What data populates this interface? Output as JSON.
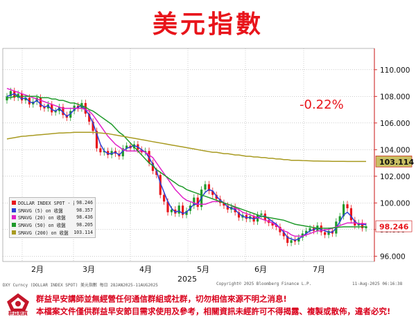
{
  "title": "美元指數",
  "change_label": "-0.22%",
  "legend": [
    {
      "name": "DOLLAR INDEX SPOT - 最新價",
      "value": "98.246",
      "color": "#e8141b"
    },
    {
      "name": "SMAVG (5)  on 收盤",
      "value": "98.357",
      "color": "#2d3fd6"
    },
    {
      "name": "SMAVG (20) on 收盤",
      "value": "98.436",
      "color": "#e020c8"
    },
    {
      "name": "SMAVG (50) on 收盤",
      "value": "98.205",
      "color": "#1f9a2a"
    },
    {
      "name": "SMAVG (200) on 收盤",
      "value": "103.114",
      "color": "#a89a20"
    }
  ],
  "footer": {
    "left": "DXY Curncy (DOLLAR INDEX SPOT) 美元指數  每日 28JAN2025-11AUG2025",
    "center": "Copyright© 2025 Bloomberg Finance L.P.",
    "right": "11-Aug-2025 06:16:38"
  },
  "disclaimer": {
    "logo_text": "群益期貨",
    "line1": "群益早安講師並無經營任何通信群組或社群，切勿相信來源不明之消息!",
    "line2": "本檔案文件僅供群益早安節目需求使用及參考，相關資訊未經許可不得揭露、複製或散佈，違者必究!"
  },
  "chart_data": {
    "type": "candlestick",
    "title": "美元指數",
    "xlabel": "2025",
    "x_ticks": [
      "2月",
      "3月",
      "4月",
      "5月",
      "6月",
      "7月"
    ],
    "y_ticks": [
      96.0,
      98.0,
      100.0,
      102.0,
      104.0,
      106.0,
      108.0,
      110.0
    ],
    "ylim": [
      95.6,
      111.6
    ],
    "last_price_label": "98.246",
    "sma200_label": "103.114",
    "grid": true,
    "legend_position": "bottom-left",
    "series": [
      {
        "name": "SMAVG (5) on 收盤",
        "color": "#2d3fd6",
        "values": [
          108.0,
          108.1,
          108.2,
          108.0,
          107.8,
          107.9,
          107.6,
          107.5,
          107.7,
          107.4,
          107.2,
          107.3,
          107.0,
          106.9,
          107.1,
          106.8,
          106.5,
          106.7,
          107.0,
          107.2,
          107.3,
          107.0,
          106.6,
          106.0,
          105.2,
          104.4,
          103.9,
          103.7,
          103.7,
          103.8,
          103.6,
          103.9,
          104.1,
          104.2,
          104.3,
          104.2,
          104.0,
          103.8,
          103.4,
          102.9,
          102.4,
          101.5,
          100.8,
          100.1,
          99.6,
          99.3,
          99.4,
          99.2,
          99.3,
          99.6,
          99.9,
          99.9,
          100.4,
          100.8,
          101.0,
          100.9,
          100.5,
          100.2,
          100.0,
          99.7,
          99.6,
          99.5,
          99.2,
          99.0,
          98.9,
          98.9,
          98.8,
          98.9,
          99.0,
          99.0,
          98.8,
          98.6,
          98.4,
          98.1,
          97.8,
          97.4,
          97.3,
          97.2,
          97.3,
          97.5,
          97.7,
          97.9,
          98.0,
          98.1,
          98.0,
          97.9,
          97.8,
          97.8,
          98.1,
          98.6,
          99.1,
          99.3,
          99.0,
          98.6,
          98.4,
          98.4,
          98.36
        ]
      },
      {
        "name": "SMAVG (20) on 收盤",
        "color": "#e020c8",
        "values": [
          108.6,
          108.5,
          108.4,
          108.3,
          108.2,
          108.1,
          108.0,
          107.9,
          107.8,
          107.7,
          107.6,
          107.5,
          107.4,
          107.3,
          107.2,
          107.1,
          107.1,
          107.1,
          107.1,
          107.1,
          107.1,
          107.0,
          106.9,
          106.6,
          106.2,
          105.8,
          105.4,
          105.0,
          104.7,
          104.4,
          104.2,
          104.0,
          103.9,
          103.9,
          103.9,
          103.9,
          103.9,
          103.8,
          103.6,
          103.4,
          103.0,
          102.6,
          102.2,
          101.8,
          101.4,
          101.0,
          100.7,
          100.4,
          100.2,
          100.1,
          100.0,
          99.9,
          99.9,
          99.9,
          100.0,
          100.1,
          100.1,
          100.1,
          100.0,
          99.9,
          99.8,
          99.6,
          99.5,
          99.3,
          99.2,
          99.1,
          99.0,
          98.9,
          98.8,
          98.7,
          98.6,
          98.5,
          98.3,
          98.1,
          97.9,
          97.8,
          97.6,
          97.5,
          97.5,
          97.5,
          97.6,
          97.7,
          97.8,
          97.9,
          97.9,
          98.0,
          98.0,
          98.1,
          98.2,
          98.3,
          98.4,
          98.5,
          98.5,
          98.5,
          98.45,
          98.44,
          98.44
        ]
      },
      {
        "name": "SMAVG (50) on 收盤",
        "color": "#1f9a2a",
        "values": [
          107.9,
          107.9,
          108.0,
          108.0,
          108.0,
          108.0,
          108.0,
          108.0,
          108.0,
          107.9,
          107.9,
          107.9,
          107.8,
          107.8,
          107.7,
          107.7,
          107.6,
          107.5,
          107.5,
          107.4,
          107.3,
          107.2,
          107.0,
          106.9,
          106.7,
          106.5,
          106.3,
          106.1,
          105.9,
          105.6,
          105.3,
          105.1,
          104.8,
          104.5,
          104.2,
          103.9,
          103.6,
          103.3,
          103.0,
          102.8,
          102.5,
          102.3,
          102.1,
          101.9,
          101.7,
          101.5,
          101.3,
          101.2,
          101.0,
          100.9,
          100.8,
          100.7,
          100.6,
          100.5,
          100.4,
          100.3,
          100.2,
          100.1,
          100.0,
          99.9,
          99.8,
          99.7,
          99.6,
          99.5,
          99.4,
          99.3,
          99.2,
          99.1,
          99.0,
          98.95,
          98.9,
          98.85,
          98.8,
          98.75,
          98.7,
          98.6,
          98.5,
          98.4,
          98.35,
          98.3,
          98.25,
          98.2,
          98.15,
          98.1,
          98.1,
          98.1,
          98.1,
          98.12,
          98.15,
          98.18,
          98.2,
          98.2,
          98.2,
          98.2,
          98.2,
          98.2,
          98.2
        ]
      },
      {
        "name": "SMAVG (200) on 收盤",
        "color": "#a89a20",
        "values": [
          104.8,
          104.85,
          104.9,
          104.95,
          105.0,
          105.02,
          105.05,
          105.07,
          105.1,
          105.12,
          105.15,
          105.17,
          105.2,
          105.22,
          105.25,
          105.25,
          105.27,
          105.28,
          105.3,
          105.3,
          105.3,
          105.3,
          105.3,
          105.3,
          105.28,
          105.25,
          105.22,
          105.2,
          105.15,
          105.1,
          105.05,
          105.0,
          104.95,
          104.9,
          104.85,
          104.8,
          104.75,
          104.7,
          104.65,
          104.6,
          104.55,
          104.5,
          104.45,
          104.4,
          104.35,
          104.3,
          104.25,
          104.2,
          104.15,
          104.1,
          104.05,
          104.0,
          103.95,
          103.9,
          103.85,
          103.8,
          103.8,
          103.75,
          103.7,
          103.7,
          103.65,
          103.6,
          103.6,
          103.55,
          103.5,
          103.5,
          103.45,
          103.45,
          103.4,
          103.4,
          103.35,
          103.35,
          103.3,
          103.3,
          103.25,
          103.25,
          103.2,
          103.2,
          103.2,
          103.18,
          103.17,
          103.16,
          103.15,
          103.15,
          103.14,
          103.13,
          103.13,
          103.12,
          103.12,
          103.12,
          103.12,
          103.11,
          103.11,
          103.11,
          103.11,
          103.11,
          103.114
        ]
      }
    ],
    "close": [
      108.0,
      108.4,
      107.9,
      108.2,
      107.7,
      107.9,
      107.4,
      107.6,
      107.9,
      107.2,
      107.1,
      107.4,
      106.8,
      106.9,
      107.2,
      106.6,
      106.4,
      106.9,
      107.3,
      107.1,
      107.5,
      106.7,
      106.1,
      105.4,
      104.1,
      103.8,
      103.9,
      103.6,
      103.9,
      103.7,
      103.5,
      104.1,
      104.3,
      104.1,
      104.4,
      104.0,
      103.8,
      103.9,
      103.0,
      102.4,
      102.1,
      100.6,
      100.1,
      99.3,
      99.5,
      99.2,
      99.8,
      99.1,
      99.4,
      99.8,
      100.4,
      99.7,
      101.0,
      101.4,
      100.9,
      100.6,
      100.3,
      100.0,
      99.8,
      99.5,
      99.7,
      99.3,
      98.9,
      99.1,
      98.8,
      99.0,
      98.6,
      99.1,
      99.2,
      98.7,
      98.5,
      98.3,
      98.2,
      97.8,
      97.5,
      97.0,
      97.2,
      97.1,
      97.4,
      97.7,
      97.9,
      98.1,
      97.9,
      98.3,
      97.8,
      97.6,
      97.9,
      97.7,
      98.6,
      99.0,
      99.9,
      99.6,
      98.7,
      98.3,
      98.5,
      98.1,
      98.246
    ],
    "open": [
      107.7,
      108.0,
      108.4,
      107.9,
      108.2,
      107.7,
      107.9,
      107.4,
      107.6,
      107.9,
      107.2,
      107.1,
      107.4,
      106.8,
      106.9,
      107.2,
      106.6,
      106.4,
      106.9,
      107.3,
      107.1,
      107.5,
      106.7,
      106.1,
      105.4,
      104.1,
      103.8,
      103.9,
      103.6,
      103.9,
      103.7,
      103.5,
      104.1,
      104.3,
      104.1,
      104.4,
      104.0,
      103.8,
      103.9,
      103.0,
      102.4,
      102.1,
      100.6,
      100.1,
      99.3,
      99.5,
      99.2,
      99.8,
      99.1,
      99.4,
      99.8,
      100.4,
      99.7,
      101.0,
      101.4,
      100.9,
      100.6,
      100.3,
      100.0,
      99.8,
      99.5,
      99.7,
      99.3,
      98.9,
      99.1,
      98.8,
      99.0,
      98.6,
      99.1,
      99.2,
      98.7,
      98.5,
      98.3,
      98.2,
      97.8,
      97.5,
      97.0,
      97.2,
      97.1,
      97.4,
      97.7,
      97.9,
      98.1,
      97.9,
      98.3,
      97.8,
      97.6,
      97.9,
      97.7,
      98.6,
      99.0,
      99.9,
      99.6,
      98.7,
      98.3,
      98.5,
      98.1
    ]
  }
}
